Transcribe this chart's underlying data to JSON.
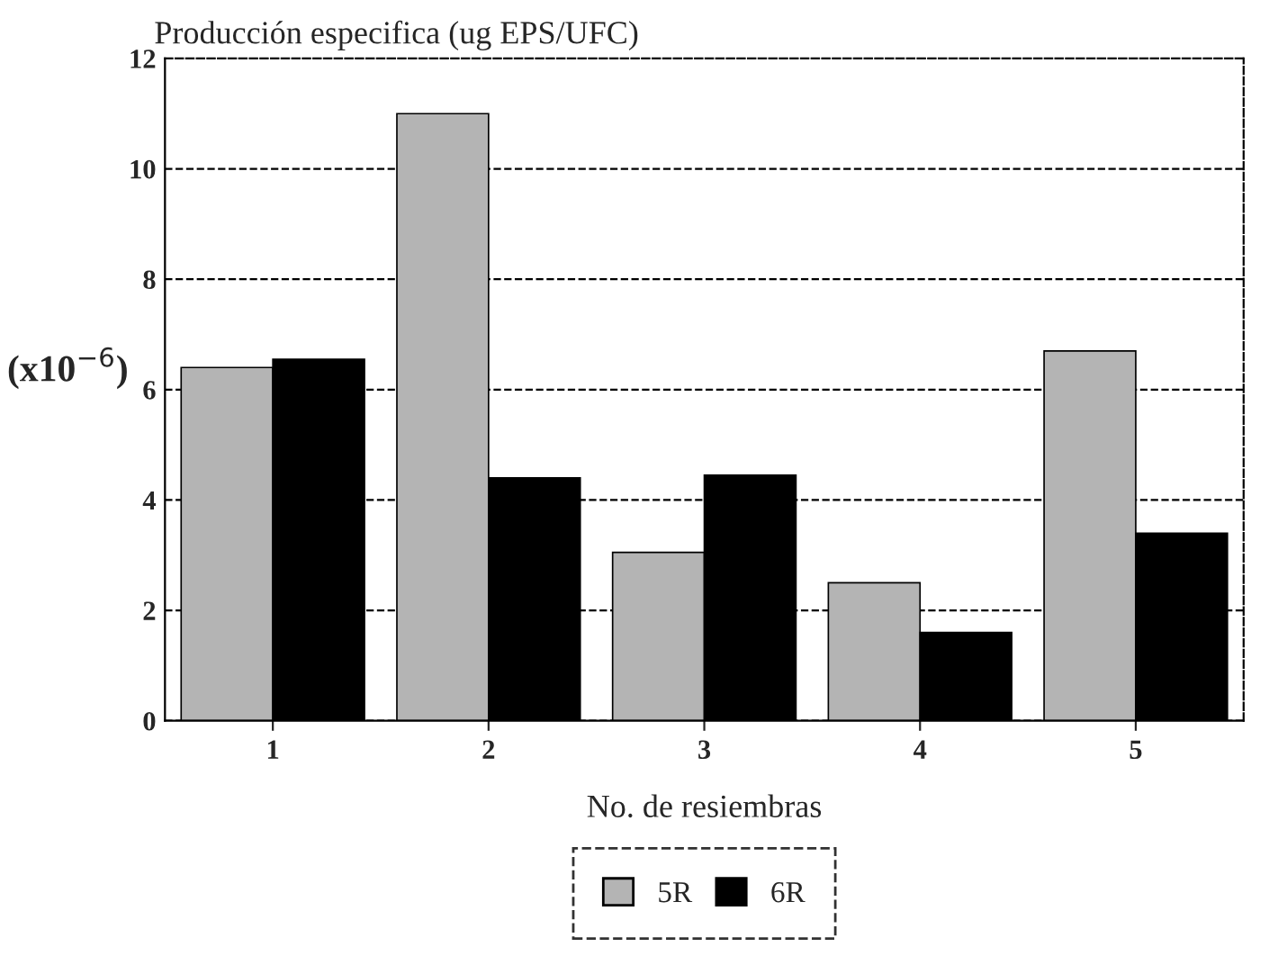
{
  "chart_data": {
    "type": "bar",
    "title": "Producción especifica (ug EPS/UFC)",
    "xlabel": "No. de resiembras",
    "ylabel": "(x10$^{−6}$)",
    "categories": [
      "1",
      "2",
      "3",
      "4",
      "5"
    ],
    "series": [
      {
        "name": "5R",
        "color": "#b4b4b4",
        "values": [
          6.4,
          11.0,
          3.05,
          2.5,
          6.7
        ]
      },
      {
        "name": "6R",
        "color": "#000000",
        "values": [
          6.55,
          4.4,
          4.45,
          1.6,
          3.4
        ]
      }
    ],
    "ylim": [
      0,
      12
    ],
    "yticks": [
      0,
      2,
      4,
      6,
      8,
      10,
      12
    ],
    "grid": "y",
    "legend": "bottom",
    "line_style": "dashed"
  }
}
